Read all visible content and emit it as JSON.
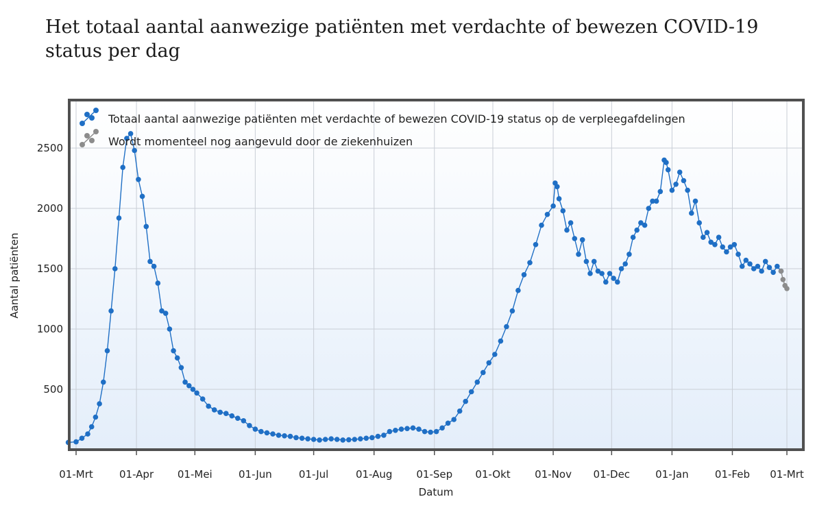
{
  "title": "Het totaal aantal aanwezige patiënten met verdachte of bewezen COVID-19 status per dag",
  "chart_data": {
    "type": "line",
    "title": "Het totaal aantal aanwezige patiënten met verdachte of bewezen COVID-19 status per dag",
    "xlabel": "Datum",
    "ylabel": "Aantal patiënten",
    "ylim": [
      0,
      2800
    ],
    "yticks": [
      500,
      1000,
      1500,
      2000,
      2500
    ],
    "xticks": [
      {
        "label": "01-Mrt",
        "day": 0
      },
      {
        "label": "01-Apr",
        "day": 31
      },
      {
        "label": "01-Mei",
        "day": 61
      },
      {
        "label": "01-Jun",
        "day": 92
      },
      {
        "label": "01-Jul",
        "day": 122
      },
      {
        "label": "01-Aug",
        "day": 153
      },
      {
        "label": "01-Sep",
        "day": 184
      },
      {
        "label": "01-Okt",
        "day": 214
      },
      {
        "label": "01-Nov",
        "day": 245
      },
      {
        "label": "01-Dec",
        "day": 275
      },
      {
        "label": "01-Jan",
        "day": 306
      },
      {
        "label": "01-Feb",
        "day": 337
      },
      {
        "label": "01-Mrt",
        "day": 365
      }
    ],
    "grid": true,
    "legend_position": "top-left",
    "series": [
      {
        "name": "Totaal aantal aanwezige patiënten met verdachte of bewezen COVID-19 status op de verpleegafdelingen",
        "color": "#1f6fc5",
        "points": [
          [
            -4,
            60
          ],
          [
            0,
            65
          ],
          [
            3,
            95
          ],
          [
            6,
            130
          ],
          [
            8,
            190
          ],
          [
            10,
            270
          ],
          [
            12,
            380
          ],
          [
            14,
            560
          ],
          [
            16,
            820
          ],
          [
            18,
            1150
          ],
          [
            20,
            1500
          ],
          [
            22,
            1920
          ],
          [
            24,
            2340
          ],
          [
            26,
            2580
          ],
          [
            28,
            2620
          ],
          [
            30,
            2480
          ],
          [
            32,
            2240
          ],
          [
            34,
            2100
          ],
          [
            36,
            1850
          ],
          [
            38,
            1560
          ],
          [
            40,
            1520
          ],
          [
            42,
            1380
          ],
          [
            44,
            1150
          ],
          [
            46,
            1130
          ],
          [
            48,
            1000
          ],
          [
            50,
            820
          ],
          [
            52,
            760
          ],
          [
            54,
            680
          ],
          [
            56,
            560
          ],
          [
            58,
            530
          ],
          [
            60,
            500
          ],
          [
            62,
            470
          ],
          [
            65,
            420
          ],
          [
            68,
            360
          ],
          [
            71,
            330
          ],
          [
            74,
            310
          ],
          [
            77,
            300
          ],
          [
            80,
            280
          ],
          [
            83,
            260
          ],
          [
            86,
            240
          ],
          [
            89,
            200
          ],
          [
            92,
            170
          ],
          [
            95,
            150
          ],
          [
            98,
            140
          ],
          [
            101,
            130
          ],
          [
            104,
            120
          ],
          [
            107,
            115
          ],
          [
            110,
            110
          ],
          [
            113,
            100
          ],
          [
            116,
            95
          ],
          [
            119,
            90
          ],
          [
            122,
            85
          ],
          [
            125,
            80
          ],
          [
            128,
            85
          ],
          [
            131,
            90
          ],
          [
            134,
            85
          ],
          [
            137,
            80
          ],
          [
            140,
            82
          ],
          [
            143,
            85
          ],
          [
            146,
            90
          ],
          [
            149,
            95
          ],
          [
            152,
            100
          ],
          [
            155,
            110
          ],
          [
            158,
            120
          ],
          [
            161,
            150
          ],
          [
            164,
            160
          ],
          [
            167,
            170
          ],
          [
            170,
            175
          ],
          [
            173,
            180
          ],
          [
            176,
            170
          ],
          [
            179,
            150
          ],
          [
            182,
            145
          ],
          [
            185,
            150
          ],
          [
            188,
            180
          ],
          [
            191,
            220
          ],
          [
            194,
            250
          ],
          [
            197,
            320
          ],
          [
            200,
            400
          ],
          [
            203,
            480
          ],
          [
            206,
            560
          ],
          [
            209,
            640
          ],
          [
            212,
            720
          ],
          [
            215,
            790
          ],
          [
            218,
            900
          ],
          [
            221,
            1020
          ],
          [
            224,
            1150
          ],
          [
            227,
            1320
          ],
          [
            230,
            1450
          ],
          [
            233,
            1550
          ],
          [
            236,
            1700
          ],
          [
            239,
            1860
          ],
          [
            242,
            1950
          ],
          [
            245,
            2020
          ],
          [
            246,
            2210
          ],
          [
            247,
            2180
          ],
          [
            248,
            2080
          ],
          [
            250,
            1980
          ],
          [
            252,
            1820
          ],
          [
            254,
            1880
          ],
          [
            256,
            1750
          ],
          [
            258,
            1620
          ],
          [
            260,
            1740
          ],
          [
            262,
            1560
          ],
          [
            264,
            1460
          ],
          [
            266,
            1560
          ],
          [
            268,
            1480
          ],
          [
            270,
            1460
          ],
          [
            272,
            1390
          ],
          [
            274,
            1460
          ],
          [
            276,
            1420
          ],
          [
            278,
            1390
          ],
          [
            280,
            1500
          ],
          [
            282,
            1540
          ],
          [
            284,
            1620
          ],
          [
            286,
            1760
          ],
          [
            288,
            1820
          ],
          [
            290,
            1880
          ],
          [
            292,
            1860
          ],
          [
            294,
            2000
          ],
          [
            296,
            2060
          ],
          [
            298,
            2060
          ],
          [
            300,
            2140
          ],
          [
            302,
            2400
          ],
          [
            303,
            2380
          ],
          [
            304,
            2320
          ],
          [
            306,
            2150
          ],
          [
            308,
            2200
          ],
          [
            310,
            2300
          ],
          [
            312,
            2230
          ],
          [
            314,
            2150
          ],
          [
            316,
            1960
          ],
          [
            318,
            2060
          ],
          [
            320,
            1880
          ],
          [
            322,
            1760
          ],
          [
            324,
            1800
          ],
          [
            326,
            1720
          ],
          [
            328,
            1700
          ],
          [
            330,
            1760
          ],
          [
            332,
            1680
          ],
          [
            334,
            1640
          ],
          [
            336,
            1680
          ],
          [
            338,
            1700
          ],
          [
            340,
            1620
          ],
          [
            342,
            1520
          ],
          [
            344,
            1570
          ],
          [
            346,
            1540
          ],
          [
            348,
            1500
          ],
          [
            350,
            1520
          ],
          [
            352,
            1480
          ],
          [
            354,
            1560
          ],
          [
            356,
            1510
          ],
          [
            358,
            1470
          ],
          [
            360,
            1520
          ],
          [
            362,
            1480
          ]
        ]
      },
      {
        "name": "Wordt momenteel nog aangevuld door de ziekenhuizen",
        "color": "#8c8c8c",
        "points": [
          [
            362,
            1480
          ],
          [
            363,
            1410
          ],
          [
            364,
            1360
          ],
          [
            365,
            1335
          ]
        ]
      }
    ]
  }
}
